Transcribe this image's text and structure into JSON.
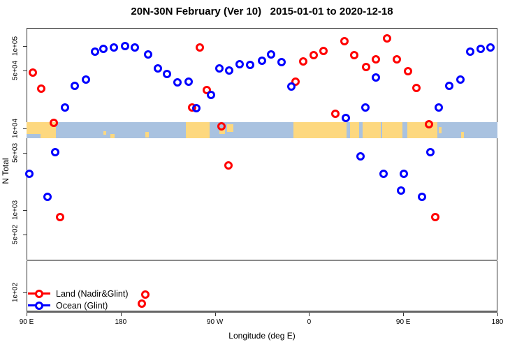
{
  "title": "20N-30N February (Ver 10)   2015-01-01 to 2020-12-18",
  "axes": {
    "y_label": "N Total",
    "x_label": "Longitude (deg E)",
    "y_scale": "log10",
    "y_ticks": [
      {
        "label": "1e+05",
        "log_value": 5.0
      },
      {
        "label": "5e+04",
        "log_value": 4.69897
      },
      {
        "label": "1e+04",
        "log_value": 4.0
      },
      {
        "label": "5e+03",
        "log_value": 3.69897
      },
      {
        "label": "1e+03",
        "log_value": 3.0
      },
      {
        "label": "5e+02",
        "log_value": 2.69897
      },
      {
        "label": "1e+02",
        "log_value": 2.0
      }
    ],
    "x_ticks": [
      {
        "label": "90 E",
        "deg": 0
      },
      {
        "label": "180",
        "deg": 90
      },
      {
        "label": "90 W",
        "deg": 180
      },
      {
        "label": "0",
        "deg": 270
      },
      {
        "label": "90 E",
        "deg": 360
      },
      {
        "label": "180",
        "deg": 450
      }
    ],
    "x_axis_note": "axis spans 450 degrees of longitude: starts at 90E on the left, wraps eastward through 180, 90W, 0, 90E to 180 on the right"
  },
  "chart_data": {
    "type": "scatter",
    "title": "20N-30N February (Ver 10)   2015-01-01 to 2020-12-18",
    "xlabel": "Longitude (deg E)",
    "ylabel": "N Total",
    "ylim_log": [
      1.6,
      5.2
    ],
    "marker": "open-circle",
    "reference_line_n": 250,
    "series": [
      {
        "name": "Land (Nadir&Glint)",
        "color": "#ff0000",
        "points_deg_n": [
          [
            5.8,
            48000
          ],
          [
            14.2,
            30000
          ],
          [
            25.8,
            11500
          ],
          [
            32.0,
            820
          ],
          [
            110.4,
            72
          ],
          [
            113.3,
            94
          ],
          [
            158.2,
            17800
          ],
          [
            165.6,
            97000
          ],
          [
            172.3,
            29000
          ],
          [
            186.1,
            10500
          ],
          [
            192.8,
            3500
          ],
          [
            257.3,
            37000
          ],
          [
            264.6,
            65000
          ],
          [
            274.4,
            77000
          ],
          [
            284.0,
            88000
          ],
          [
            295.1,
            15000
          ],
          [
            304.0,
            115000
          ],
          [
            313.3,
            78000
          ],
          [
            324.5,
            56000
          ],
          [
            334.0,
            69000
          ],
          [
            344.7,
            123000
          ],
          [
            354.1,
            69000
          ],
          [
            364.8,
            49000
          ],
          [
            372.6,
            31000
          ],
          [
            384.6,
            11200
          ],
          [
            390.8,
            820
          ]
        ]
      },
      {
        "name": "Ocean (Glint)",
        "color": "#0000ff",
        "points_deg_n": [
          [
            2.9,
            2800
          ],
          [
            19.8,
            1440
          ],
          [
            27.4,
            5100
          ],
          [
            36.5,
            18000
          ],
          [
            45.9,
            32500
          ],
          [
            56.5,
            39000
          ],
          [
            65.4,
            85000
          ],
          [
            73.6,
            92500
          ],
          [
            83.7,
            95500
          ],
          [
            94.1,
            101000
          ],
          [
            103.7,
            95500
          ],
          [
            116.0,
            78500
          ],
          [
            125.5,
            53000
          ],
          [
            134.4,
            46000
          ],
          [
            144.4,
            36300
          ],
          [
            154.9,
            37100
          ],
          [
            162.2,
            17500
          ],
          [
            176.0,
            25400
          ],
          [
            184.5,
            53700
          ],
          [
            193.8,
            50300
          ],
          [
            203.8,
            59700
          ],
          [
            213.9,
            58600
          ],
          [
            225.0,
            66000
          ],
          [
            233.9,
            79400
          ],
          [
            243.9,
            63400
          ],
          [
            252.8,
            32000
          ],
          [
            305.1,
            13200
          ],
          [
            319.1,
            4500
          ],
          [
            324.0,
            17700
          ],
          [
            334.0,
            41700
          ],
          [
            341.2,
            2800
          ],
          [
            358.1,
            1740
          ],
          [
            360.3,
            2800
          ],
          [
            378.1,
            1460
          ],
          [
            385.9,
            5100
          ],
          [
            394.1,
            18000
          ],
          [
            404.1,
            32500
          ],
          [
            414.8,
            39000
          ],
          [
            423.8,
            85000
          ],
          [
            433.8,
            92500
          ],
          [
            443.1,
            96600
          ]
        ]
      }
    ],
    "map_strip": {
      "description": "land/ocean strip for the 20N-30N latitude band drawn across the plot at N ~1e+04",
      "ocean_color": "#a9c2e0",
      "land_color": "#fdd87f",
      "land_segments": [
        {
          "d0": 0,
          "d1": 28,
          "y0": 0,
          "y1": 1
        },
        {
          "d0": 73.4,
          "d1": 76.1,
          "y0": 0.55,
          "y1": 0.8
        },
        {
          "d0": 80.1,
          "d1": 84.1,
          "y0": 0.75,
          "y1": 1
        },
        {
          "d0": 113.5,
          "d1": 116.8,
          "y0": 0.6,
          "y1": 0.95
        },
        {
          "d0": 152.2,
          "d1": 174.9,
          "y0": 0,
          "y1": 1
        },
        {
          "d0": 184.3,
          "d1": 189.6,
          "y0": 0.35,
          "y1": 0.75
        },
        {
          "d0": 191.6,
          "d1": 197.6,
          "y0": 0.15,
          "y1": 0.6
        },
        {
          "d0": 255.0,
          "d1": 305.8,
          "y0": 0,
          "y1": 1
        },
        {
          "d0": 309.1,
          "d1": 317.8,
          "y0": 0,
          "y1": 1
        },
        {
          "d0": 321.1,
          "d1": 338.5,
          "y0": 0,
          "y1": 1
        },
        {
          "d0": 339.8,
          "d1": 359.2,
          "y0": 0,
          "y1": 1
        },
        {
          "d0": 363.9,
          "d1": 392.6,
          "y0": 0,
          "y1": 1
        },
        {
          "d0": 393.9,
          "d1": 396.6,
          "y0": 0.3,
          "y1": 0.7
        },
        {
          "d0": 415.3,
          "d1": 418.0,
          "y0": 0.6,
          "y1": 1
        }
      ],
      "ocean_patches": [
        {
          "d0": 0,
          "d1": 13.4,
          "y0": 0.72,
          "y1": 1
        }
      ]
    },
    "legend_position": "bottom-left"
  },
  "legend": {
    "items": [
      {
        "label": "Land (Nadir&Glint)",
        "color": "#ff0000"
      },
      {
        "label": "Ocean (Glint)",
        "color": "#0000ff"
      }
    ]
  },
  "colors": {
    "land_series": "#ff0000",
    "ocean_series": "#0000ff",
    "strip_ocean": "#a9c2e0",
    "strip_land": "#fdd87f",
    "reference_line": "#8a8a8a"
  }
}
